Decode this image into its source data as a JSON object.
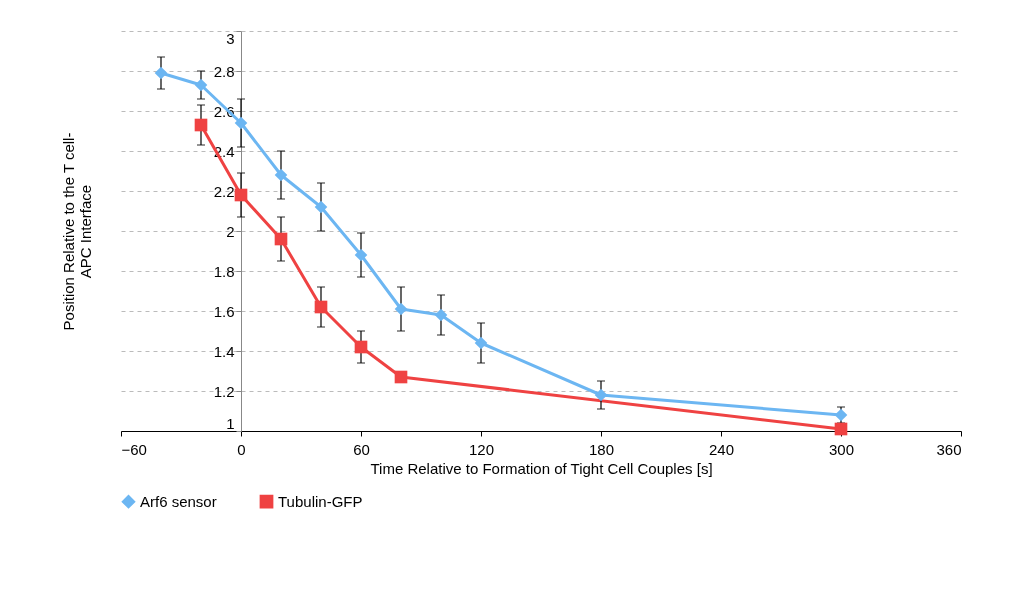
{
  "chart_data": {
    "type": "line",
    "xlabel": "Time Relative to Formation of Tight Cell Couples [s]",
    "ylabel": "Position Relative to the T cell-\nAPC Interface",
    "xlim": [
      -60,
      360
    ],
    "xticks": [
      -60,
      0,
      60,
      120,
      180,
      240,
      300,
      360
    ],
    "ylim": [
      1,
      3
    ],
    "yticks": [
      1,
      1.2,
      1.4,
      1.6,
      1.8,
      2,
      2.2,
      2.4,
      2.6,
      2.8,
      3
    ],
    "grid": "y",
    "legend": "bottom",
    "line_style": "solid",
    "series": [
      {
        "name": "Arf6 sensor",
        "color": "#6cb6f2",
        "marker": "diamond",
        "x": [
          -40,
          -20,
          0,
          20,
          40,
          60,
          80,
          100,
          120,
          180,
          300
        ],
        "values": [
          2.79,
          2.73,
          2.54,
          2.28,
          2.12,
          1.88,
          1.61,
          1.58,
          1.44,
          1.18,
          1.08
        ],
        "errors": [
          0.08,
          0.07,
          0.12,
          0.12,
          0.12,
          0.11,
          0.11,
          0.1,
          0.1,
          0.07,
          0.04
        ]
      },
      {
        "name": "Tubulin-GFP",
        "color": "#ef4242",
        "marker": "square",
        "x": [
          -20,
          0,
          20,
          40,
          60,
          80,
          300
        ],
        "values": [
          2.53,
          2.18,
          1.96,
          1.62,
          1.42,
          1.27,
          1.01
        ],
        "errors": [
          0.1,
          0.11,
          0.11,
          0.1,
          0.08,
          null,
          null
        ]
      }
    ]
  }
}
